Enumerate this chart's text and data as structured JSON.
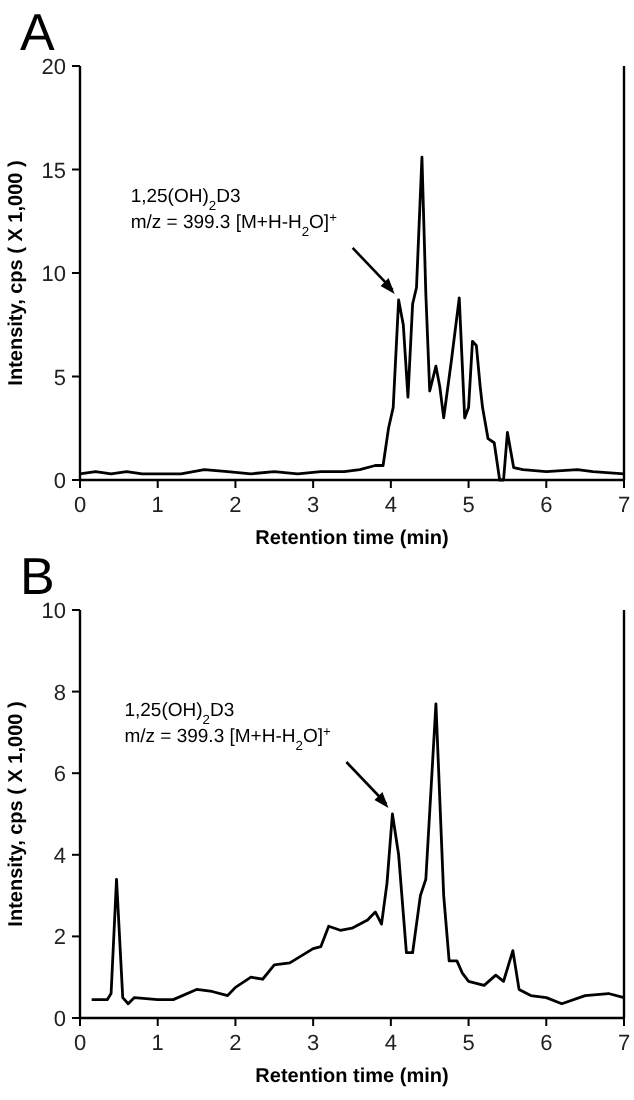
{
  "chart_data": [
    {
      "type": "line",
      "title": "A",
      "xlabel": "Retention time (min)",
      "ylabel": "Intensity, cps ( X 1,000 )",
      "xlim": [
        0,
        7
      ],
      "xticks": [
        0,
        1,
        2,
        3,
        4,
        5,
        6,
        7
      ],
      "ylim": [
        0,
        20
      ],
      "yticks": [
        0,
        5,
        10,
        15,
        20
      ],
      "marker": "none",
      "line_style": "solid",
      "annotations": [
        "1,25(OH)$_{2}$D3",
        {
          "text": "m/z = 399.3 [M+H-H$_{2}$O]$^{+}$",
          "x": 4.1,
          "y": 8.7
        }
      ],
      "series": [
        {
          "color": "#000000",
          "x": [
            0,
            0.2,
            0.4,
            0.6,
            0.8,
            1.0,
            1.3,
            1.6,
            1.9,
            2.2,
            2.5,
            2.8,
            3.1,
            3.4,
            3.6,
            3.8,
            3.9,
            3.97,
            4.03,
            4.1,
            4.16,
            4.22,
            4.28,
            4.33,
            4.4,
            4.45,
            4.5,
            4.58,
            4.63,
            4.68,
            4.78,
            4.88,
            4.95,
            5.0,
            5.05,
            5.1,
            5.15,
            5.18,
            5.25,
            5.33,
            5.4,
            5.45,
            5.5,
            5.58,
            5.7,
            6.0,
            6.4,
            6.6,
            7.0
          ],
          "values": [
            0.3,
            0.4,
            0.3,
            0.4,
            0.3,
            0.3,
            0.3,
            0.5,
            0.4,
            0.3,
            0.4,
            0.3,
            0.4,
            0.4,
            0.5,
            0.7,
            0.7,
            2.5,
            3.5,
            8.7,
            7.5,
            4.0,
            8.5,
            9.3,
            15.6,
            9.0,
            4.3,
            5.5,
            4.5,
            3.0,
            5.8,
            8.8,
            3.0,
            3.5,
            6.7,
            6.5,
            4.5,
            3.5,
            2.0,
            1.8,
            0.0,
            0.0,
            2.3,
            0.6,
            0.5,
            0.4,
            0.5,
            0.4,
            0.3
          ]
        }
      ]
    },
    {
      "type": "line",
      "title": "B",
      "xlabel": "Retention time (min)",
      "ylabel": "Intensity, cps ( X 1,000 )",
      "xlim": [
        0,
        7
      ],
      "xticks": [
        0,
        1,
        2,
        3,
        4,
        5,
        6,
        7
      ],
      "ylim": [
        0,
        10
      ],
      "yticks": [
        0,
        2,
        4,
        6,
        8,
        10
      ],
      "marker": "none",
      "line_style": "solid",
      "annotations": [
        "1,25(OH)$_{2}$D3",
        {
          "text": "m/z = 399.3 [M+H-H$_{2}$O]$^{+}$",
          "x": 4.02,
          "y": 5.0
        }
      ],
      "series": [
        {
          "color": "#000000",
          "x": [
            0.15,
            0.35,
            0.4,
            0.47,
            0.55,
            0.62,
            0.7,
            1.0,
            1.2,
            1.5,
            1.7,
            1.9,
            2.0,
            2.2,
            2.35,
            2.5,
            2.7,
            3.0,
            3.1,
            3.2,
            3.35,
            3.5,
            3.7,
            3.8,
            3.88,
            3.95,
            4.02,
            4.1,
            4.2,
            4.28,
            4.38,
            4.45,
            4.58,
            4.68,
            4.75,
            4.85,
            4.92,
            5.0,
            5.2,
            5.35,
            5.45,
            5.57,
            5.65,
            5.8,
            6.0,
            6.2,
            6.5,
            6.8,
            7.0
          ],
          "values": [
            0.45,
            0.45,
            0.6,
            3.4,
            0.5,
            0.35,
            0.5,
            0.45,
            0.45,
            0.7,
            0.65,
            0.55,
            0.75,
            1.0,
            0.95,
            1.3,
            1.35,
            1.7,
            1.75,
            2.25,
            2.15,
            2.2,
            2.4,
            2.6,
            2.3,
            3.3,
            5.0,
            4.0,
            1.6,
            1.6,
            3.0,
            3.4,
            7.7,
            3.0,
            1.4,
            1.4,
            1.1,
            0.9,
            0.8,
            1.05,
            0.9,
            1.65,
            0.7,
            0.55,
            0.5,
            0.35,
            0.55,
            0.6,
            0.5
          ]
        }
      ]
    }
  ]
}
